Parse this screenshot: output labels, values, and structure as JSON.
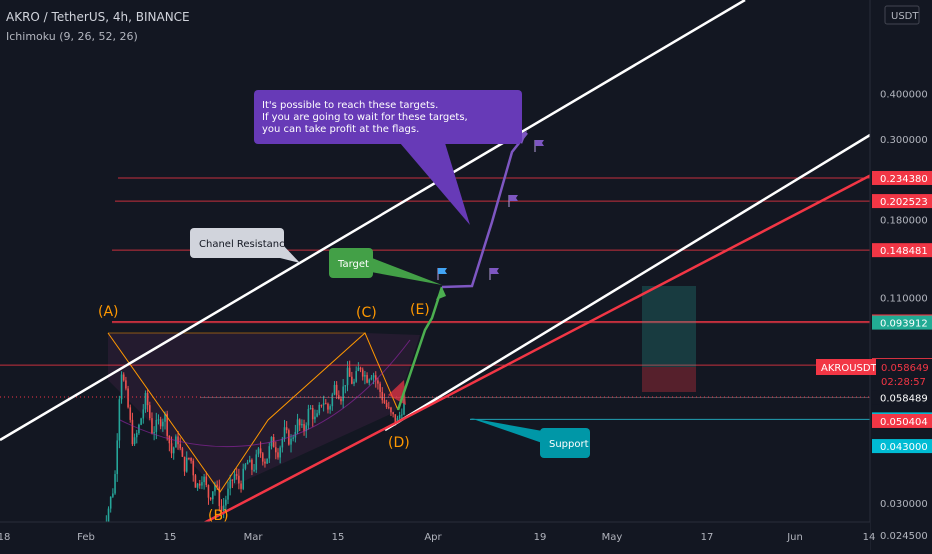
{
  "header": {
    "symbol": "AKRO / TetherUS, 4h, BINANCE",
    "indicator": "Ichimoku (9, 26, 52, 26)"
  },
  "currency_button": "USDT",
  "colors": {
    "background": "#131722",
    "axis_text": "#b2b5be",
    "level_line": "#f23645",
    "support_line": "#26c6da",
    "current_line": "#f23645",
    "wave_label": "#ff9800",
    "channel": "#ffffff",
    "channel_red": "#f23645",
    "flag": "#7e57c2",
    "note_bg": "#673ab7",
    "target_bg": "#43a047",
    "support_bg": "#0097a7",
    "resistance_bg": "#d1d4dc"
  },
  "chart_data": {
    "type": "candlestick",
    "y_scale": "log",
    "ylim": [
      0.023,
      0.7
    ],
    "y_ticks": [
      0.4,
      0.3,
      0.18,
      0.11,
      0.03,
      0.0245
    ],
    "y_tick_labels": [
      "0.400000",
      "0.300000",
      "0.180000",
      "0.110000",
      "0.030000",
      "0.024500"
    ],
    "x_tick_labels": [
      "18",
      "Feb",
      "15",
      "Mar",
      "15",
      "Apr",
      "19",
      "May",
      "17",
      "Jun",
      "14"
    ],
    "price_levels": [
      {
        "value": 0.23438,
        "label": "0.234380",
        "style": "red"
      },
      {
        "value": 0.202523,
        "label": "0.202523",
        "style": "red"
      },
      {
        "value": 0.148481,
        "label": "0.148481",
        "style": "red"
      },
      {
        "value": 0.094574,
        "label": "0.094574",
        "style": "red"
      },
      {
        "value": 0.093912,
        "label": "0.093912",
        "style": "green"
      },
      {
        "value": 0.071748,
        "label": "0.071748",
        "style": "red"
      },
      {
        "value": 0.058489,
        "label": "0.058489",
        "style": "dark"
      },
      {
        "value": 0.050907,
        "label": "0.050907",
        "style": "cyan"
      },
      {
        "value": 0.050404,
        "label": "0.050404",
        "style": "red"
      },
      {
        "value": 0.043,
        "label": "0.043000",
        "style": "cyan"
      }
    ],
    "current_price": {
      "value": 0.058649,
      "label": "0.058649",
      "ticker": "AKROUSDT",
      "countdown": "02:28:57"
    },
    "wave_labels": [
      {
        "text": "(A)",
        "price": 0.0716
      },
      {
        "text": "(B)",
        "price": 0.028
      },
      {
        "text": "(C)",
        "price": 0.0718
      },
      {
        "text": "(D)",
        "price": 0.0503
      },
      {
        "text": "(E)",
        "price": 0.0939
      }
    ],
    "annotations": {
      "note": [
        "It's possible to reach these targets.",
        "If you are going to wait for these targets,",
        "you can take profit at the flags."
      ],
      "resistance": "Chanel Resistance",
      "target": "Target",
      "support": "Support"
    },
    "pattern_prices": [
      0.0245,
      0.029,
      0.034,
      0.071,
      0.057,
      0.043,
      0.0495,
      0.059,
      0.047,
      0.05,
      0.052,
      0.041,
      0.0455,
      0.0375,
      0.0405,
      0.033,
      0.036,
      0.031,
      0.034,
      0.0285,
      0.032,
      0.036,
      0.0335,
      0.039,
      0.037,
      0.042,
      0.039,
      0.0445,
      0.0415,
      0.047,
      0.044,
      0.05,
      0.047,
      0.055,
      0.05,
      0.058,
      0.054,
      0.063,
      0.059,
      0.068,
      0.0635,
      0.0718,
      0.066,
      0.069,
      0.062,
      0.056,
      0.052,
      0.0503,
      0.057
    ]
  }
}
